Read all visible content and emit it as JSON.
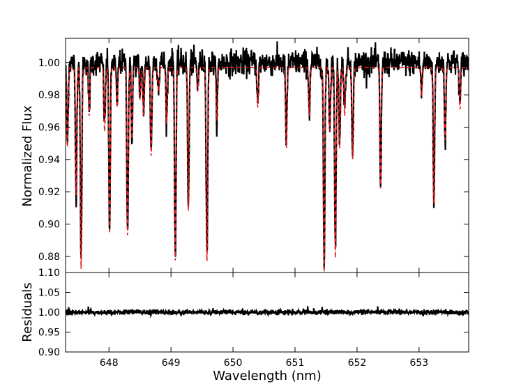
{
  "chart_data": [
    {
      "type": "line",
      "panel": "top",
      "ylabel": "Normalized Flux",
      "xlabel": "",
      "xlim": [
        647.3,
        653.8
      ],
      "ylim": [
        0.87,
        1.015
      ],
      "yticks": [
        "0.88",
        "0.90",
        "0.92",
        "0.94",
        "0.96",
        "0.98",
        "1.00"
      ],
      "ytick_values": [
        0.88,
        0.9,
        0.92,
        0.94,
        0.96,
        0.98,
        1.0
      ],
      "bottom_tick_label": "1.10",
      "continuum": 1.0,
      "series": [
        {
          "color": "#000000",
          "style": "solid",
          "noise": 0.004
        },
        {
          "color": "#e41a1c",
          "style": "dashed"
        }
      ],
      "absorption_lines": [
        {
          "x": 647.33,
          "depth": 0.05
        },
        {
          "x": 647.47,
          "depth": 0.08
        },
        {
          "x": 647.55,
          "depth": 0.125
        },
        {
          "x": 647.68,
          "depth": 0.03
        },
        {
          "x": 647.93,
          "depth": 0.04
        },
        {
          "x": 648.01,
          "depth": 0.103
        },
        {
          "x": 648.13,
          "depth": 0.025
        },
        {
          "x": 648.3,
          "depth": 0.105
        },
        {
          "x": 648.37,
          "depth": 0.045
        },
        {
          "x": 648.5,
          "depth": 0.02
        },
        {
          "x": 648.56,
          "depth": 0.03
        },
        {
          "x": 648.68,
          "depth": 0.055
        },
        {
          "x": 648.8,
          "depth": 0.015
        },
        {
          "x": 648.93,
          "depth": 0.035
        },
        {
          "x": 649.07,
          "depth": 0.12
        },
        {
          "x": 649.28,
          "depth": 0.09
        },
        {
          "x": 649.43,
          "depth": 0.015
        },
        {
          "x": 649.58,
          "depth": 0.12
        },
        {
          "x": 649.74,
          "depth": 0.033
        },
        {
          "x": 650.4,
          "depth": 0.025
        },
        {
          "x": 650.86,
          "depth": 0.05
        },
        {
          "x": 651.23,
          "depth": 0.03
        },
        {
          "x": 651.47,
          "depth": 0.127
        },
        {
          "x": 651.56,
          "depth": 0.04
        },
        {
          "x": 651.65,
          "depth": 0.118
        },
        {
          "x": 651.72,
          "depth": 0.05
        },
        {
          "x": 651.8,
          "depth": 0.03
        },
        {
          "x": 651.93,
          "depth": 0.057
        },
        {
          "x": 652.38,
          "depth": 0.075
        },
        {
          "x": 653.04,
          "depth": 0.018
        },
        {
          "x": 653.24,
          "depth": 0.085
        },
        {
          "x": 653.42,
          "depth": 0.045
        },
        {
          "x": 653.66,
          "depth": 0.026
        }
      ]
    },
    {
      "type": "line",
      "panel": "bottom",
      "ylabel": "Residuals",
      "xlabel": "Wavelength (nm)",
      "xlim": [
        647.3,
        653.8
      ],
      "ylim": [
        0.9,
        1.1
      ],
      "yticks": [
        "0.90",
        "0.95",
        "1.00",
        "1.05"
      ],
      "ytick_values": [
        0.9,
        0.95,
        1.0,
        1.05
      ],
      "xticks": [
        "648",
        "649",
        "650",
        "651",
        "652",
        "653"
      ],
      "xtick_values": [
        648,
        649,
        650,
        651,
        652,
        653
      ],
      "series": [
        {
          "color": "#000000",
          "style": "solid",
          "center": 1.0,
          "noise": 0.003
        }
      ]
    }
  ]
}
